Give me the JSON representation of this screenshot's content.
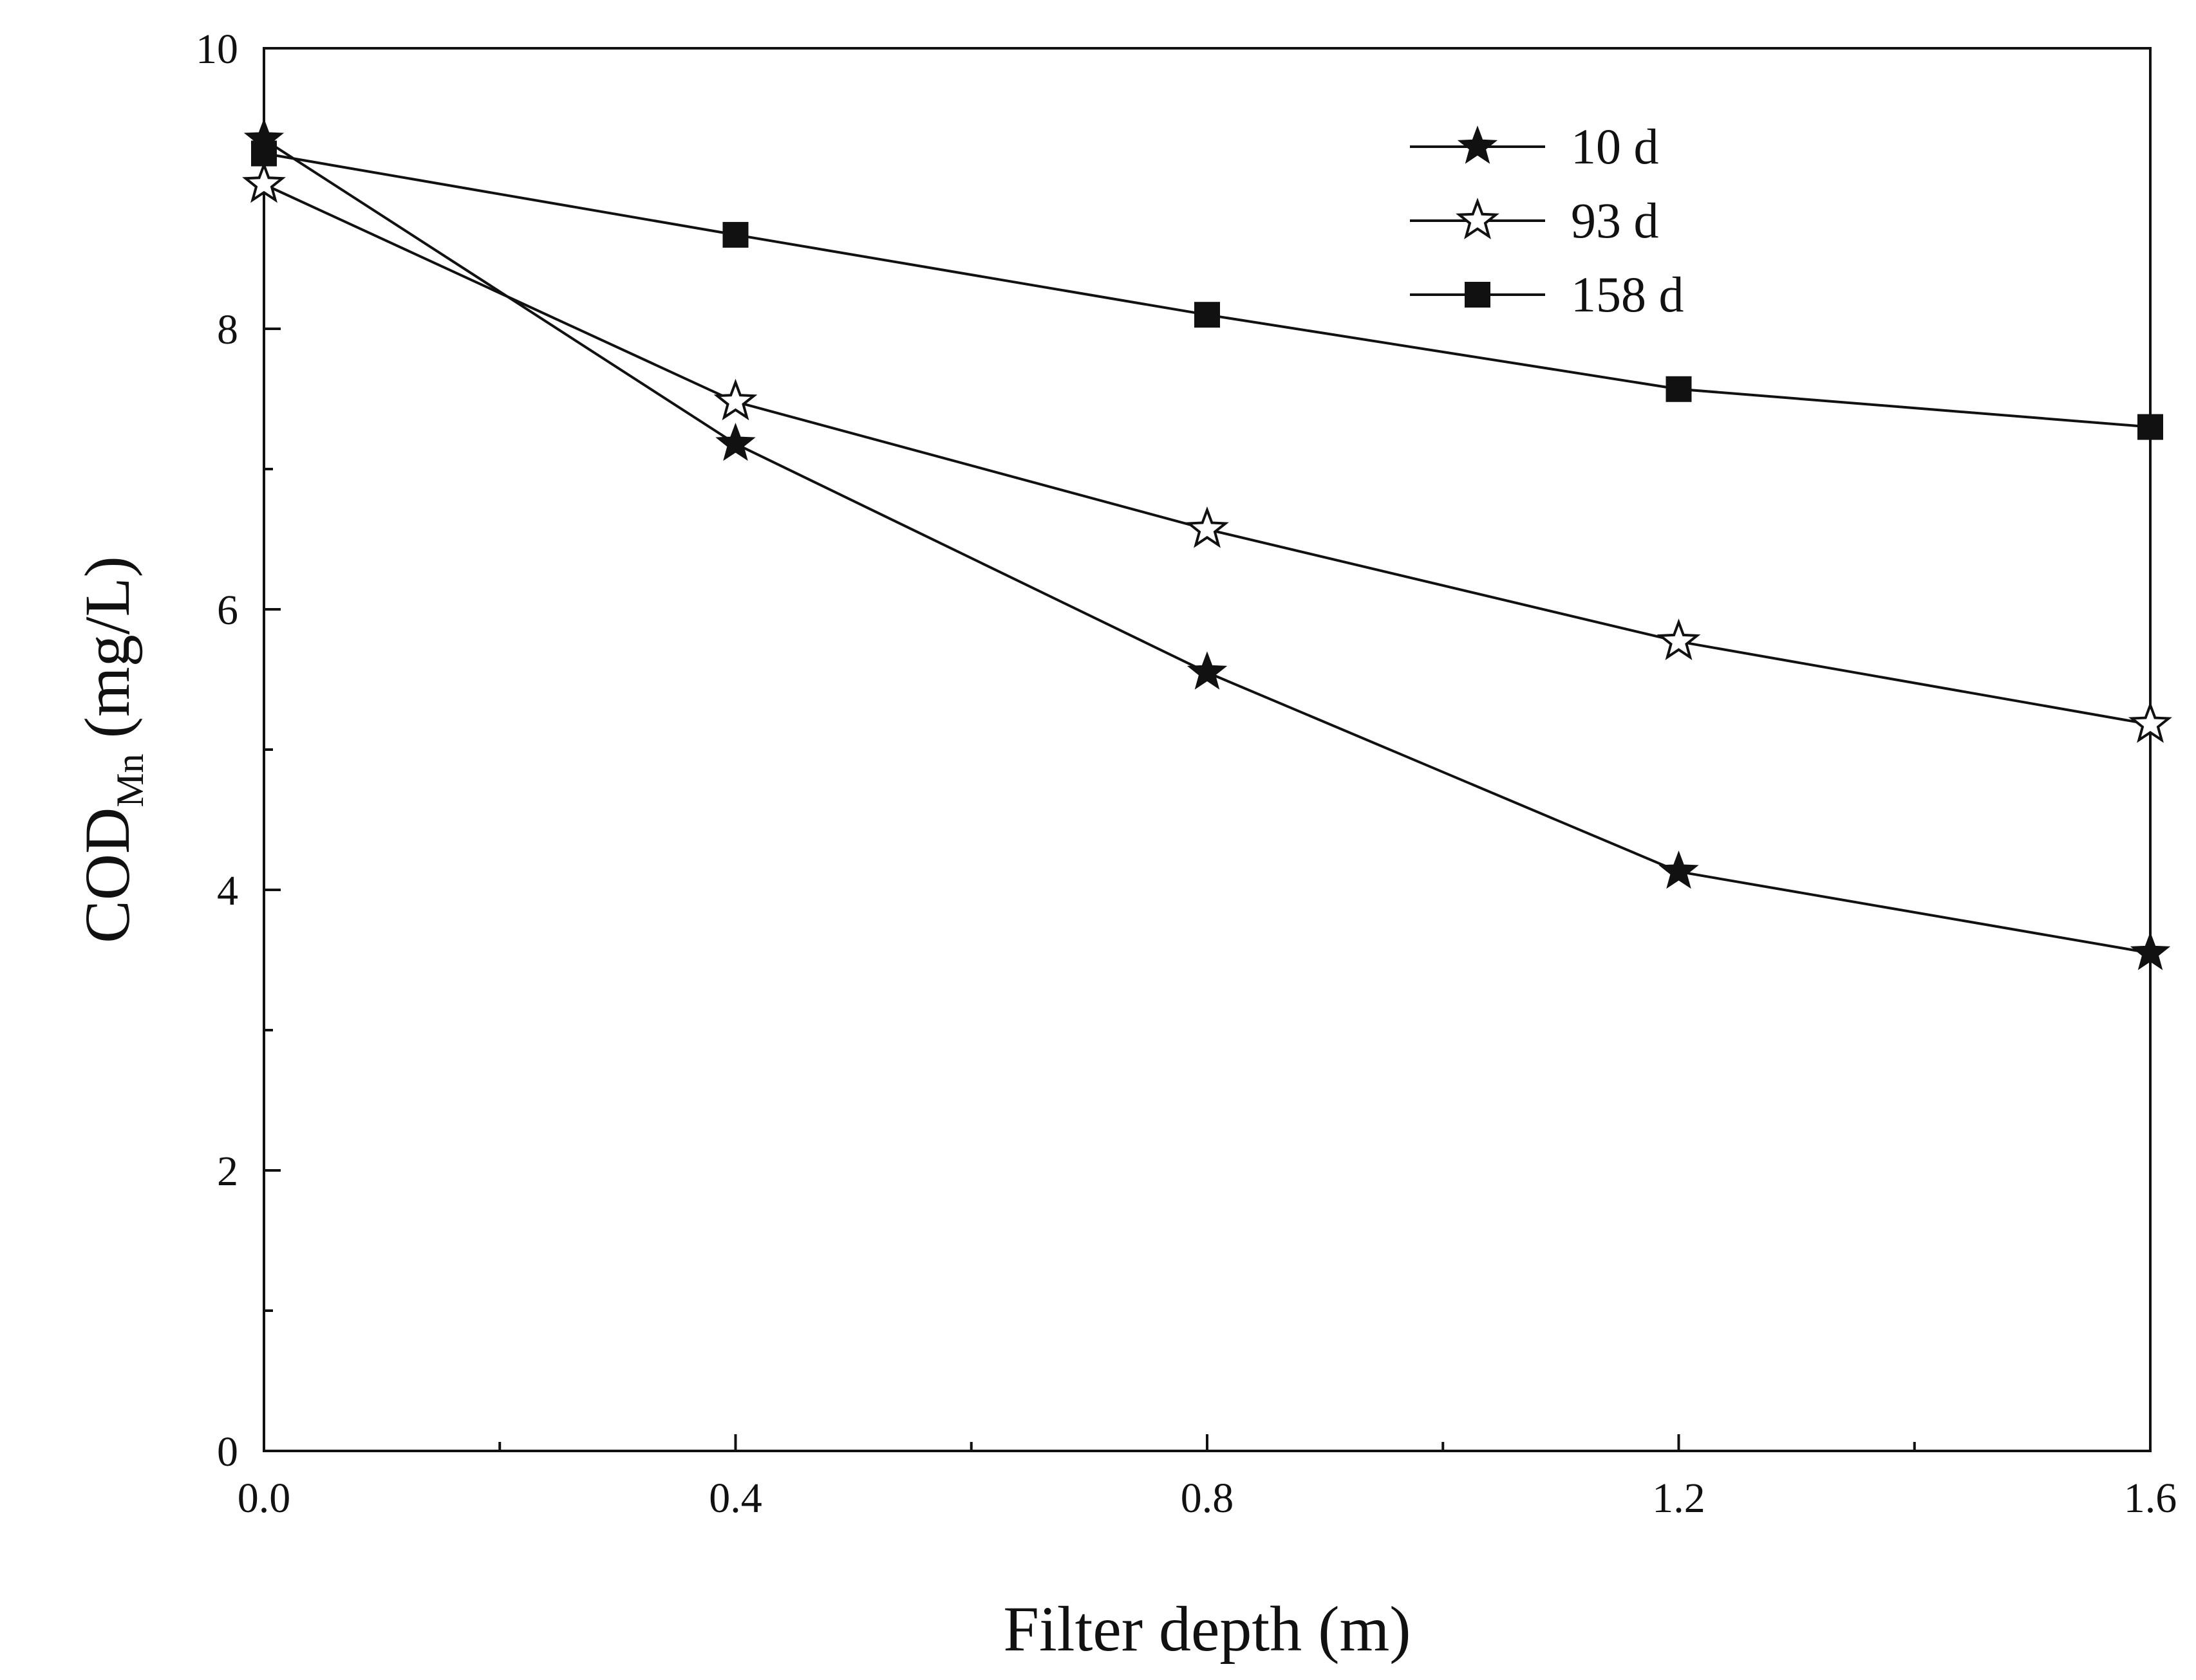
{
  "chart_data": {
    "type": "line",
    "xlabel": "Filter depth (m)",
    "ylabel": {
      "main": "COD",
      "subscript": "Mn",
      "unit": "(mg/L)"
    },
    "xlim": [
      0,
      1.6
    ],
    "ylim": [
      0,
      10
    ],
    "x_ticks": [
      "0.0",
      "0.4",
      "0.8",
      "1.2",
      "1.6"
    ],
    "y_ticks": [
      "0",
      "2",
      "4",
      "6",
      "8",
      "10"
    ],
    "x": [
      0,
      0.4,
      0.8,
      1.2,
      1.6
    ],
    "series": [
      {
        "name": "10 d",
        "marker": "star-filled",
        "values": [
          9.35,
          7.18,
          5.55,
          4.13,
          3.55
        ]
      },
      {
        "name": "93 d",
        "marker": "star-open",
        "values": [
          9.03,
          7.48,
          6.57,
          5.77,
          5.18
        ]
      },
      {
        "name": "158 d",
        "marker": "square-filled",
        "values": [
          9.25,
          8.67,
          8.1,
          7.57,
          7.3
        ]
      }
    ],
    "legend_position": "top-right",
    "grid": false,
    "colors": {
      "line": "#111111",
      "marker": "#111111",
      "background": "#ffffff"
    }
  }
}
